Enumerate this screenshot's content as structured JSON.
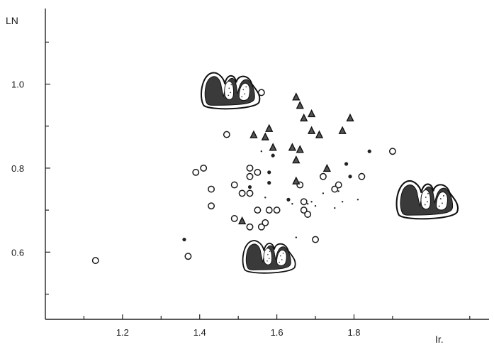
{
  "chart_data": {
    "type": "scatter",
    "xlabel": "Ir.",
    "ylabel": "LN",
    "xlim": [
      1.0,
      2.15
    ],
    "ylim": [
      0.44,
      1.18
    ],
    "x_ticks": [
      1.2,
      1.4,
      1.6,
      1.8
    ],
    "x_tick_labels": [
      "1.2",
      "1.4",
      "1.6",
      "1.8"
    ],
    "y_ticks": [
      0.6,
      0.8,
      1.0
    ],
    "y_tick_labels": [
      "0.6",
      "0.8",
      "1.0"
    ],
    "grid": false,
    "series": [
      {
        "marker": "open-circle",
        "points": [
          [
            1.13,
            0.58
          ],
          [
            1.37,
            0.59
          ],
          [
            1.39,
            0.79
          ],
          [
            1.41,
            0.8
          ],
          [
            1.43,
            0.75
          ],
          [
            1.43,
            0.71
          ],
          [
            1.47,
            0.88
          ],
          [
            1.49,
            0.76
          ],
          [
            1.49,
            0.68
          ],
          [
            1.51,
            0.74
          ],
          [
            1.53,
            0.74
          ],
          [
            1.53,
            0.66
          ],
          [
            1.53,
            0.8
          ],
          [
            1.53,
            0.78
          ],
          [
            1.55,
            0.7
          ],
          [
            1.55,
            0.79
          ],
          [
            1.56,
            0.98
          ],
          [
            1.56,
            0.66
          ],
          [
            1.57,
            0.67
          ],
          [
            1.58,
            0.7
          ],
          [
            1.6,
            0.7
          ],
          [
            1.66,
            0.76
          ],
          [
            1.67,
            0.72
          ],
          [
            1.67,
            0.7
          ],
          [
            1.68,
            0.69
          ],
          [
            1.7,
            0.63
          ],
          [
            1.72,
            0.78
          ],
          [
            1.75,
            0.75
          ],
          [
            1.76,
            0.76
          ],
          [
            1.82,
            0.78
          ],
          [
            1.9,
            0.84
          ]
        ]
      },
      {
        "marker": "filled-triangle",
        "points": [
          [
            1.51,
            0.675
          ],
          [
            1.54,
            0.88
          ],
          [
            1.57,
            0.875
          ],
          [
            1.58,
            0.895
          ],
          [
            1.59,
            0.85
          ],
          [
            1.64,
            0.85
          ],
          [
            1.65,
            0.82
          ],
          [
            1.65,
            0.77
          ],
          [
            1.65,
            0.97
          ],
          [
            1.66,
            0.845
          ],
          [
            1.66,
            0.95
          ],
          [
            1.67,
            0.92
          ],
          [
            1.69,
            0.93
          ],
          [
            1.69,
            0.89
          ],
          [
            1.71,
            0.88
          ],
          [
            1.73,
            0.8
          ],
          [
            1.77,
            0.89
          ],
          [
            1.79,
            0.92
          ]
        ]
      },
      {
        "marker": "filled-dot",
        "points": [
          [
            1.36,
            0.63
          ],
          [
            1.53,
            0.755
          ],
          [
            1.58,
            0.79
          ],
          [
            1.58,
            0.765
          ],
          [
            1.59,
            0.83
          ],
          [
            1.63,
            0.725
          ],
          [
            1.78,
            0.81
          ],
          [
            1.79,
            0.78
          ],
          [
            1.84,
            0.84
          ]
        ]
      },
      {
        "marker": "small-dot",
        "points": [
          [
            1.56,
            0.84
          ],
          [
            1.57,
            0.73
          ],
          [
            1.64,
            0.715
          ],
          [
            1.65,
            0.635
          ],
          [
            1.68,
            0.715
          ],
          [
            1.69,
            0.72
          ],
          [
            1.7,
            0.71
          ],
          [
            1.72,
            0.74
          ],
          [
            1.75,
            0.705
          ],
          [
            1.76,
            0.745
          ],
          [
            1.77,
            0.72
          ],
          [
            1.81,
            0.725
          ]
        ]
      }
    ],
    "insets": [
      {
        "name": "cross-section-large-top",
        "icon": "heart-cross-section-icon",
        "x": 1.48,
        "y": 0.98,
        "scale": 1.0
      },
      {
        "name": "cross-section-right",
        "icon": "heart-cross-section-icon",
        "x": 1.99,
        "y": 0.72,
        "scale": 1.05
      },
      {
        "name": "cross-section-bottom",
        "icon": "heart-cross-section-icon",
        "x": 1.58,
        "y": 0.585,
        "scale": 0.9
      }
    ]
  }
}
